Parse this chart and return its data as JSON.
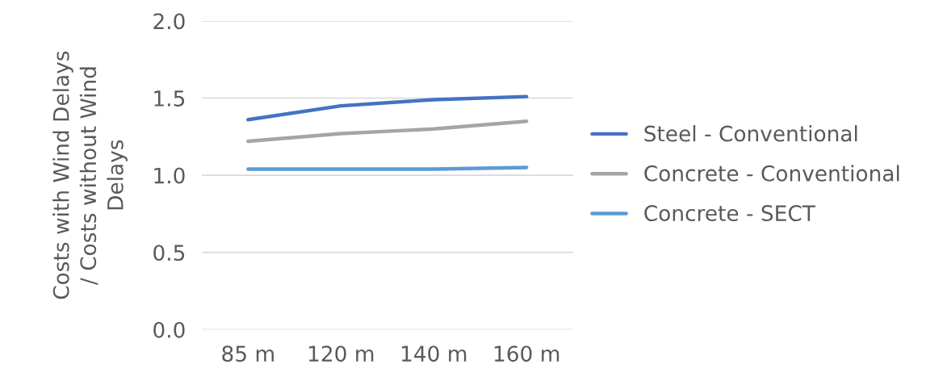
{
  "chart_data": {
    "type": "line",
    "ylabel": "Costs with Wind Delays\n/ Costs without Wind\nDelays",
    "categories": [
      "85 m",
      "120 m",
      "140 m",
      "160 m"
    ],
    "series": [
      {
        "name": "Steel - Conventional",
        "color": "#4472c4",
        "values": [
          1.36,
          1.45,
          1.49,
          1.51
        ]
      },
      {
        "name": "Concrete - Conventional",
        "color": "#a5a5a5",
        "values": [
          1.22,
          1.27,
          1.3,
          1.35
        ]
      },
      {
        "name": "Concrete - SECT",
        "color": "#5b9bd5",
        "values": [
          1.04,
          1.04,
          1.04,
          1.05
        ]
      }
    ],
    "ylim": [
      0,
      2
    ],
    "yticks": [
      {
        "value": 0,
        "label": "0.0"
      },
      {
        "value": 0.5,
        "label": "0.5"
      },
      {
        "value": 1,
        "label": "1.0"
      },
      {
        "value": 1.5,
        "label": "1.5"
      },
      {
        "value": 2,
        "label": "2.0"
      }
    ],
    "grid": "y",
    "legend": "right",
    "marker": "none",
    "line_style": "solid"
  }
}
